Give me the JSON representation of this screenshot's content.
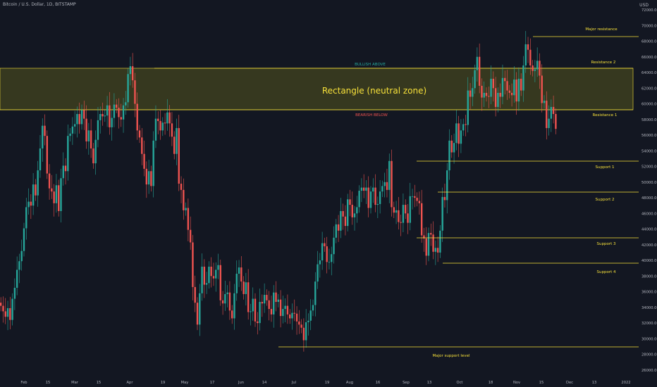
{
  "header": {
    "symbol": "Bitcoin / U.S. Dollar, 1D, BITSTAMP",
    "currency": "USD"
  },
  "colors": {
    "background": "#131722",
    "up": "#26a69a",
    "down": "#ef5350",
    "annotation": "#f7e13a",
    "zone_fill": "#4a4a1e",
    "bullish": "#26a69a",
    "bearish": "#ef5350",
    "axis_text": "#b2b5be"
  },
  "chart_data": {
    "type": "candlestick",
    "ylim": [
      25000,
      72000
    ],
    "y_ticks": [
      "72000.00",
      "70000.00",
      "68000.00",
      "66000.00",
      "64000.00",
      "62000.00",
      "60000.00",
      "58000.00",
      "56000.00",
      "54000.00",
      "52000.00",
      "50000.00",
      "48000.00",
      "46000.00",
      "44000.00",
      "42000.00",
      "40000.00",
      "38000.00",
      "36000.00",
      "34000.00",
      "32000.00",
      "30000.00",
      "28000.00",
      "26000.00"
    ],
    "x_ticks": [
      "Feb",
      "15",
      "Mar",
      "15",
      "Apr",
      "19",
      "May",
      "17",
      "Jun",
      "14",
      "Jul",
      "19",
      "Aug",
      "16",
      "Sep",
      "13",
      "Oct",
      "18",
      "Nov",
      "15",
      "Dec",
      "13",
      "2022"
    ],
    "grid": false,
    "closes": [
      34200,
      33500,
      32800,
      33900,
      32400,
      35100,
      36500,
      38800,
      39900,
      41200,
      44100,
      46800,
      47500,
      47000,
      49700,
      48300,
      51500,
      54300,
      57200,
      55900,
      51100,
      49200,
      48800,
      47300,
      49600,
      46300,
      50500,
      52100,
      51400,
      55900,
      56200,
      57100,
      57400,
      58700,
      57400,
      59200,
      58100,
      55200,
      56600,
      54300,
      52400,
      55400,
      57900,
      58700,
      58400,
      58500,
      59800,
      57000,
      58200,
      59900,
      59500,
      58300,
      58000,
      59800,
      60200,
      63800,
      64800,
      63000,
      60000,
      56600,
      55700,
      53600,
      51700,
      49700,
      51400,
      49500,
      55300,
      58100,
      57800,
      56600,
      57600,
      57500,
      58900,
      57500,
      55800,
      53600,
      56900,
      49800,
      49000,
      46400,
      46700,
      43900,
      42300,
      36600,
      34600,
      31800,
      35800,
      39200,
      36900,
      37100,
      39200,
      38000,
      37700,
      38800,
      39400,
      34900,
      34500,
      35700,
      35900,
      33600,
      32600,
      35800,
      38300,
      39100,
      37300,
      35700,
      37200,
      33400,
      33500,
      35100,
      32200,
      32000,
      34700,
      34500,
      35600,
      34900,
      33800,
      33100,
      35900,
      34700,
      35000,
      32900,
      33800,
      34200,
      33100,
      32600,
      33300,
      33200,
      32200,
      31800,
      31400,
      29800,
      32100,
      32300,
      33600,
      34300,
      37300,
      39500,
      40000,
      42200,
      41800,
      39800,
      39800,
      40800,
      42900,
      44600,
      43800,
      46300,
      45600,
      44400,
      47800,
      47100,
      45500,
      46000,
      46800,
      48900,
      49300,
      48900,
      49300,
      46700,
      48800,
      49300,
      47100,
      47200,
      48800,
      49500,
      50000,
      49000,
      52700,
      46800,
      46100,
      46400,
      44900,
      44800,
      47100,
      46000,
      44800,
      48200,
      48200,
      48000,
      47600,
      47300,
      43200,
      42800,
      40600,
      43500,
      43300,
      41100,
      41600,
      41000,
      43800,
      48100,
      47700,
      51500,
      55300,
      53800,
      55000,
      57500,
      54900,
      56600,
      57400,
      57300,
      61700,
      60900,
      62000,
      64300,
      66000,
      62300,
      60800,
      61400,
      61000,
      60900,
      63200,
      62000,
      59600,
      61400,
      60900,
      63300,
      62900,
      61700,
      61400,
      61100,
      63100,
      60300,
      63200,
      61700,
      64900,
      67600,
      66900,
      64900,
      64200,
      64400,
      65500,
      63600,
      60100,
      60400,
      56900,
      58100,
      59600,
      58700,
      56800
    ]
  },
  "annotations": {
    "zone_label": "Rectangle (neutral zone)",
    "bullish": "BULLISH ABOVE",
    "bearish": "BEARISH BELOW",
    "major_resistance": "Major resistance",
    "resistance2": "Resistance 2",
    "resistance1": "Resistance 1",
    "support1": "Support 1",
    "support2": "Support 2",
    "support3": "Support 3",
    "support4": "Support 4",
    "major_support": "Major support level"
  }
}
